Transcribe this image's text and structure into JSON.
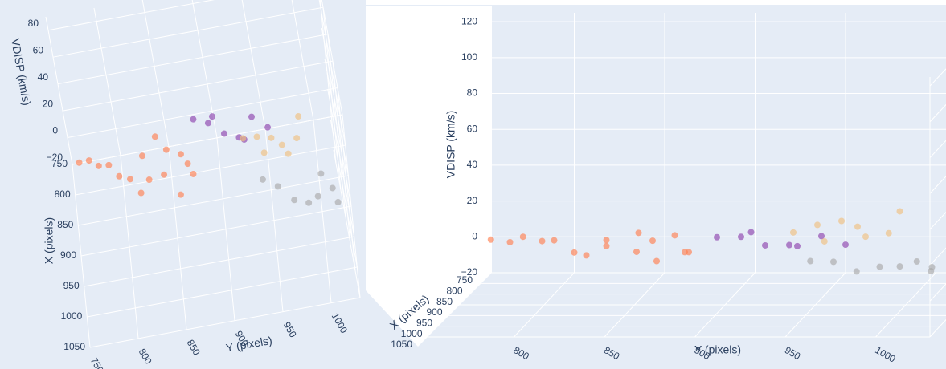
{
  "chart_data": [
    {
      "type": "scatter3d",
      "xlabel": "X (pixels)",
      "ylabel": "Y (pixels)",
      "zlabel": "VDISP (km/s)",
      "xlim": [
        750,
        1050
      ],
      "ylim": [
        750,
        1030
      ],
      "zlim": [
        -20,
        90
      ],
      "xticks": [
        750,
        800,
        850,
        900,
        950,
        1000,
        1050
      ],
      "yticks": [
        750,
        800,
        850,
        900,
        950,
        1000
      ],
      "zticks": [
        {
          "value": -20,
          "label": "−20"
        },
        0,
        20,
        40,
        60,
        80
      ],
      "grid": true,
      "series": [
        {
          "color": "#ff7f50",
          "x": [
            800,
            820,
            840,
            860,
            810,
            830,
            850,
            870,
            790,
            880,
            825,
            845,
            815,
            835,
            855,
            805
          ],
          "y": [
            770,
            790,
            810,
            830,
            850,
            870,
            800,
            820,
            840,
            860,
            780,
            845,
            825,
            865,
            875,
            760
          ],
          "z": [
            3,
            6,
            2,
            8,
            5,
            1,
            10,
            4,
            7,
            2,
            9,
            3,
            6,
            11,
            4,
            5
          ]
        },
        {
          "color": "#8e44ad",
          "x": [
            760,
            775,
            790,
            805,
            780,
            795,
            770,
            810
          ],
          "y": [
            880,
            895,
            910,
            925,
            940,
            955,
            900,
            930
          ],
          "z": [
            1,
            3,
            0,
            2,
            4,
            1,
            5,
            2
          ]
        },
        {
          "color": "#f0c080",
          "x": [
            830,
            845,
            860,
            875,
            840,
            855,
            870,
            850
          ],
          "y": [
            930,
            945,
            960,
            975,
            990,
            950,
            970,
            985
          ],
          "z": [
            12,
            18,
            22,
            15,
            25,
            10,
            20,
            14
          ]
        },
        {
          "color": "#a9a9a9",
          "x": [
            880,
            900,
            920,
            940,
            890,
            910,
            930,
            950
          ],
          "y": [
            945,
            960,
            975,
            990,
            1005,
            1015,
            1000,
            1020
          ],
          "z": [
            2,
            4,
            1,
            6,
            3,
            0,
            5,
            7
          ]
        }
      ]
    },
    {
      "type": "scatter3d",
      "xlabel": "X (pixels)",
      "ylabel": "Y (pixels)",
      "zlabel": "VDISP (km/s)",
      "xlim": [
        750,
        1050
      ],
      "ylim": [
        750,
        1030
      ],
      "zlim": [
        -20,
        125
      ],
      "xticks": [
        750,
        800,
        850,
        900,
        950,
        1000,
        1050
      ],
      "yticks": [
        800,
        850,
        900,
        950,
        1000
      ],
      "zticks": [
        {
          "value": -20,
          "label": "−20"
        },
        0,
        20,
        40,
        60,
        80,
        100,
        120
      ],
      "grid": true,
      "series": [
        {
          "color": "#ff7f50",
          "x": [
            800,
            820,
            840,
            860,
            810,
            830,
            850,
            870,
            790,
            880,
            825,
            845,
            815,
            835,
            855,
            805
          ],
          "y": [
            770,
            790,
            810,
            830,
            850,
            870,
            800,
            820,
            840,
            860,
            780,
            845,
            825,
            865,
            875,
            760
          ],
          "z": [
            3,
            6,
            2,
            8,
            5,
            1,
            10,
            4,
            7,
            2,
            9,
            3,
            6,
            11,
            4,
            5
          ]
        },
        {
          "color": "#8e44ad",
          "x": [
            760,
            775,
            790,
            805,
            780,
            795,
            770,
            810
          ],
          "y": [
            880,
            895,
            910,
            925,
            940,
            955,
            900,
            930
          ],
          "z": [
            1,
            3,
            0,
            2,
            4,
            1,
            5,
            2
          ]
        },
        {
          "color": "#f0c080",
          "x": [
            830,
            845,
            860,
            875,
            840,
            855,
            870,
            850
          ],
          "y": [
            930,
            945,
            960,
            975,
            990,
            950,
            970,
            985
          ],
          "z": [
            12,
            18,
            22,
            15,
            25,
            10,
            20,
            14
          ]
        },
        {
          "color": "#a9a9a9",
          "x": [
            880,
            900,
            920,
            940,
            890,
            910,
            930,
            950
          ],
          "y": [
            945,
            960,
            975,
            990,
            1005,
            1015,
            1000,
            1020
          ],
          "z": [
            2,
            4,
            1,
            6,
            3,
            0,
            5,
            7
          ]
        }
      ]
    }
  ]
}
